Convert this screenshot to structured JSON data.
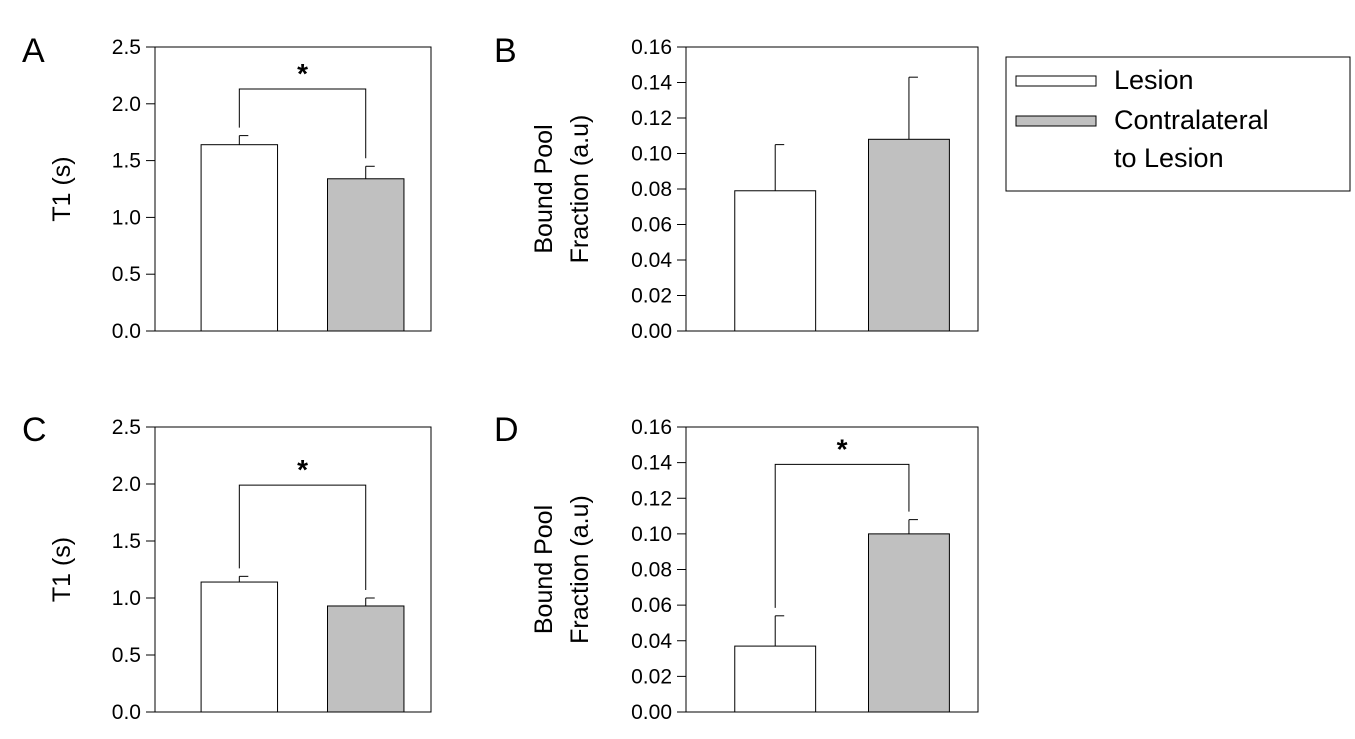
{
  "legend": {
    "placement": "top-right",
    "items": [
      {
        "lines": [
          "Lesion"
        ],
        "color": "#ffffff"
      },
      {
        "lines": [
          "Contralateral",
          "to Lesion"
        ],
        "color": "#c0c0c0"
      }
    ]
  },
  "colors": {
    "lesion": "#ffffff",
    "contralateral": "#c0c0c0",
    "axis": "#000000"
  },
  "chart_data": [
    {
      "panel": "A",
      "type": "bar",
      "ylabel": [
        "T1 (s)"
      ],
      "ylim": [
        0,
        2.5
      ],
      "ticks": [
        "0.0",
        "0.5",
        "1.0",
        "1.5",
        "2.0",
        "2.5"
      ],
      "categories": [
        "Lesion",
        "Contralateral to Lesion"
      ],
      "values": [
        1.64,
        1.34
      ],
      "errors": [
        0.08,
        0.11
      ],
      "significance": {
        "label": "*",
        "level": 2.13
      }
    },
    {
      "panel": "B",
      "type": "bar",
      "ylabel": [
        "Bound Pool",
        "Fraction (a.u)"
      ],
      "ylim": [
        0,
        0.16
      ],
      "ticks": [
        "0.00",
        "0.02",
        "0.04",
        "0.06",
        "0.08",
        "0.10",
        "0.12",
        "0.14",
        "0.16"
      ],
      "categories": [
        "Lesion",
        "Contralateral to Lesion"
      ],
      "values": [
        0.079,
        0.108
      ],
      "errors": [
        0.026,
        0.035
      ],
      "significance": null
    },
    {
      "panel": "C",
      "type": "bar",
      "ylabel": [
        "T1 (s)"
      ],
      "ylim": [
        0,
        2.5
      ],
      "ticks": [
        "0.0",
        "0.5",
        "1.0",
        "1.5",
        "2.0",
        "2.5"
      ],
      "categories": [
        "Lesion",
        "Contralateral to Lesion"
      ],
      "values": [
        1.14,
        0.93
      ],
      "errors": [
        0.05,
        0.07
      ],
      "significance": {
        "label": "*",
        "level": 1.99
      }
    },
    {
      "panel": "D",
      "type": "bar",
      "ylabel": [
        "Bound Pool",
        "Fraction (a.u)"
      ],
      "ylim": [
        0,
        0.16
      ],
      "ticks": [
        "0.00",
        "0.02",
        "0.04",
        "0.06",
        "0.08",
        "0.10",
        "0.12",
        "0.14",
        "0.16"
      ],
      "categories": [
        "Lesion",
        "Contralateral to Lesion"
      ],
      "values": [
        0.037,
        0.1
      ],
      "errors": [
        0.017,
        0.008
      ],
      "significance": {
        "label": "*",
        "level": 0.139
      }
    }
  ]
}
